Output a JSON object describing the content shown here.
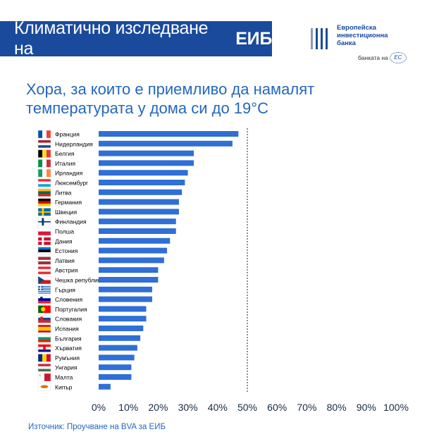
{
  "header": {
    "banner_text": "Климатично изследване на",
    "banner_bold": "ЕИБ",
    "logo_line1": "Европейска",
    "logo_line2": "инвестиционна",
    "logo_line3": "банка",
    "logo_tagline": "банката на",
    "logo_eu": "ЕС"
  },
  "title_line1": "Хора, за които е приемливо да намалят",
  "title_line2": "температурата у дома си до 19°C",
  "source": "Източник: Проучване на BVA за ЕИБ",
  "colors": {
    "bar": "#2f6fd6",
    "brand": "#1a4a9c",
    "title": "#2467bd"
  },
  "chart_data": {
    "type": "bar",
    "orientation": "horizontal",
    "categories": [
      "Франция",
      "Нидерландия",
      "Белгия",
      "Италия",
      "Ирландия",
      "Люксембург",
      "Литва",
      "Германия",
      "Швеция",
      "Финландия",
      "Полша",
      "Дания",
      "Естония",
      "Латвия",
      "Австрия",
      "Чешка република",
      "Гърция",
      "Словения",
      "Португалия",
      "Словакия",
      "Испания",
      "България",
      "Хърватия",
      "Румъния",
      "Унгария",
      "Малта",
      "Кипър"
    ],
    "flags": [
      "fr",
      "nl",
      "be",
      "it",
      "ie",
      "lu",
      "lt",
      "de",
      "se",
      "fi",
      "pl",
      "dk",
      "ee",
      "lv",
      "at",
      "cz",
      "gr",
      "si",
      "pt",
      "sk",
      "es",
      "bg",
      "hr",
      "ro",
      "hu",
      "mt",
      "cy"
    ],
    "values": [
      47,
      45,
      32,
      32,
      30,
      29,
      28,
      27,
      27,
      26,
      26,
      24,
      23,
      22,
      20,
      20,
      18,
      18,
      16,
      16,
      15,
      14,
      13,
      12,
      11,
      11,
      4
    ],
    "xlim": [
      0,
      100
    ],
    "xticks": [
      "0%",
      "10%",
      "20%",
      "30%",
      "40%",
      "50%",
      "60%",
      "70%",
      "80%",
      "90%",
      "100%"
    ],
    "reference_line": 50,
    "xlabel": "",
    "ylabel": ""
  }
}
